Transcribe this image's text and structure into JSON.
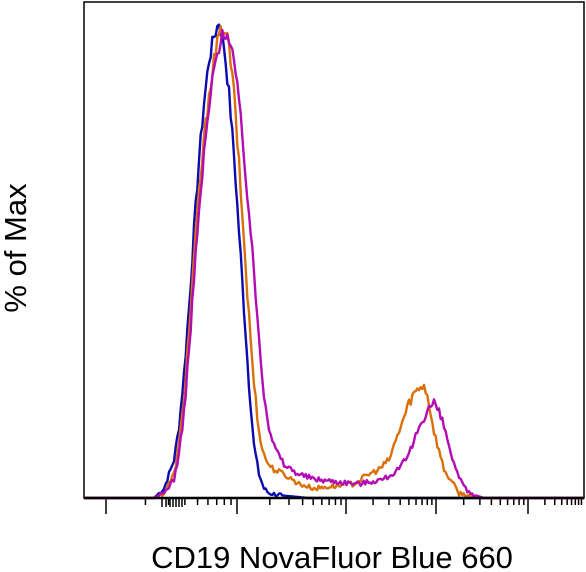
{
  "chart_data": {
    "type": "line",
    "title": "",
    "xlabel": "CD19 NovaFluor Blue 660",
    "ylabel": "% of Max",
    "x_scale": "log",
    "x_ticks_labeled": false,
    "y_ticks_labeled": false,
    "xlim": [
      0,
      100
    ],
    "ylim": [
      0,
      100
    ],
    "grid": false,
    "legend": "none",
    "series": [
      {
        "color": "#0b0bb0",
        "x": [
          0,
          14,
          16,
          18,
          19,
          20,
          21,
          22,
          23,
          24,
          25,
          26,
          27,
          28,
          29,
          30,
          31,
          32,
          33,
          34,
          35,
          36,
          37,
          40,
          45,
          55,
          70,
          85,
          100
        ],
        "y": [
          0,
          0,
          2,
          8,
          15,
          26,
          40,
          56,
          71,
          83,
          92,
          97,
          100,
          95,
          85,
          72,
          56,
          40,
          24,
          11,
          5,
          2,
          1,
          0.5,
          0,
          0,
          0,
          0,
          0
        ]
      },
      {
        "color": "#d9700a",
        "x": [
          0,
          14,
          16,
          18,
          19,
          20,
          21,
          22,
          23,
          24,
          25,
          26,
          27,
          28,
          29,
          30,
          31,
          32,
          33,
          34,
          35,
          36,
          37,
          38,
          40,
          43,
          46,
          50,
          54,
          57,
          59,
          61,
          62,
          63,
          64,
          65,
          66,
          67,
          68,
          69,
          70,
          72,
          75,
          80,
          85,
          100
        ],
        "y": [
          0,
          0,
          1,
          5,
          11,
          21,
          35,
          50,
          64,
          75,
          85,
          92,
          97,
          99,
          95,
          85,
          70,
          54,
          38,
          24,
          14,
          9,
          7,
          6,
          5,
          3,
          2,
          2.5,
          3,
          5,
          6,
          8,
          11,
          14,
          17,
          20,
          22,
          23,
          24,
          20,
          14,
          6,
          1,
          0,
          0,
          0
        ]
      },
      {
        "color": "#b30cb3",
        "x": [
          0,
          14,
          16,
          18,
          19,
          20,
          21,
          22,
          23,
          24,
          25,
          26,
          27,
          28,
          29,
          30,
          31,
          32,
          33,
          34,
          35,
          36,
          37,
          38,
          39,
          40,
          43,
          46,
          50,
          55,
          60,
          63,
          65,
          66,
          67,
          68,
          69,
          70,
          71,
          72,
          73,
          74,
          75,
          77,
          80,
          85,
          100
        ],
        "y": [
          0,
          0,
          1,
          4,
          9,
          18,
          31,
          46,
          60,
          72,
          82,
          90,
          95,
          98,
          97,
          92,
          83,
          72,
          60,
          47,
          34,
          22,
          15,
          11,
          9,
          7,
          5,
          4,
          3.5,
          3,
          4,
          6,
          9,
          12,
          15,
          17,
          19,
          20,
          18,
          15,
          11,
          7,
          4,
          1,
          0,
          0,
          0
        ]
      }
    ]
  }
}
